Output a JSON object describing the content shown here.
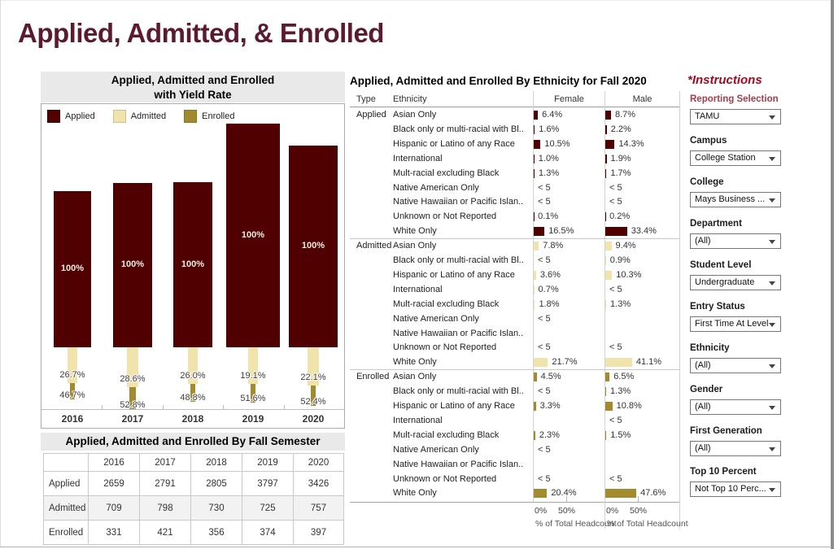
{
  "page": {
    "title": "Applied, Admitted, & Enrolled"
  },
  "colors": {
    "applied": "#500000",
    "admitted": "#F0E3AB",
    "enrolled": "#A28A2F",
    "title_maroon": "#5C1A31",
    "instructions_red": "#A6081F",
    "selection_red": "#A33C4B"
  },
  "yield_chart": {
    "title_line1": "Applied, Admitted and Enrolled",
    "title_line2": "with Yield Rate",
    "legend": [
      "Applied",
      "Admitted",
      "Enrolled"
    ],
    "years": [
      "2016",
      "2017",
      "2018",
      "2019",
      "2020"
    ],
    "applied": [
      2659,
      2791,
      2805,
      3797,
      3426
    ],
    "admitted": [
      709,
      798,
      730,
      725,
      757
    ],
    "enrolled": [
      331,
      421,
      356,
      374,
      397
    ],
    "applied_pct": [
      "100%",
      "100%",
      "100%",
      "100%",
      "100%"
    ],
    "admitted_pct": [
      "26.7%",
      "28.6%",
      "26.0%",
      "19.1%",
      "22.1%"
    ],
    "enrolled_pct": [
      "46.7%",
      "52.8%",
      "48.8%",
      "51.6%",
      "52.4%"
    ]
  },
  "semester_table": {
    "title": "Applied, Admitted and Enrolled By Fall Semester",
    "columns": [
      "",
      "2016",
      "2017",
      "2018",
      "2019",
      "2020"
    ],
    "rows": [
      {
        "label": "Applied",
        "values": [
          "2659",
          "2791",
          "2805",
          "3797",
          "3426"
        ]
      },
      {
        "label": "Admitted",
        "values": [
          "709",
          "798",
          "730",
          "725",
          "757"
        ]
      },
      {
        "label": "Enrolled",
        "values": [
          "331",
          "421",
          "356",
          "374",
          "397"
        ]
      }
    ]
  },
  "ethnicity_table": {
    "title": "Applied, Admitted and Enrolled By Ethnicity for Fall 2020",
    "columns": [
      "Type",
      "Ethnicity",
      "Female",
      "Male"
    ],
    "axis": {
      "ticks": [
        "0%",
        "50%"
      ],
      "caption": "% of Total Headcount"
    },
    "sections": [
      {
        "type": "Applied",
        "rows": [
          {
            "ethnicity": "Asian Only",
            "female": "6.4%",
            "male": "8.7%",
            "female_pct": 6.4,
            "male_pct": 8.7
          },
          {
            "ethnicity": "Black only or multi-racial with Bl..",
            "female": "1.6%",
            "male": "2.2%",
            "female_pct": 1.6,
            "male_pct": 2.2
          },
          {
            "ethnicity": "Hispanic or Latino of any Race",
            "female": "10.5%",
            "male": "14.3%",
            "female_pct": 10.5,
            "male_pct": 14.3
          },
          {
            "ethnicity": "International",
            "female": "1.0%",
            "male": "1.9%",
            "female_pct": 1.0,
            "male_pct": 1.9
          },
          {
            "ethnicity": "Mult-racial excluding Black",
            "female": "1.3%",
            "male": "1.7%",
            "female_pct": 1.3,
            "male_pct": 1.7
          },
          {
            "ethnicity": "Native American Only",
            "female": "< 5",
            "male": "< 5",
            "female_pct": 0,
            "male_pct": 0
          },
          {
            "ethnicity": "Native Hawaiian or Pacific Islan..",
            "female": "< 5",
            "male": "< 5",
            "female_pct": 0,
            "male_pct": 0
          },
          {
            "ethnicity": "Unknown or Not Reported",
            "female": "0.1%",
            "male": "0.2%",
            "female_pct": 0.1,
            "male_pct": 0.2
          },
          {
            "ethnicity": "White Only",
            "female": "16.5%",
            "male": "33.4%",
            "female_pct": 16.5,
            "male_pct": 33.4
          }
        ]
      },
      {
        "type": "Admitted",
        "rows": [
          {
            "ethnicity": "Asian Only",
            "female": "7.8%",
            "male": "9.4%",
            "female_pct": 7.8,
            "male_pct": 9.4
          },
          {
            "ethnicity": "Black only or multi-racial with Bl..",
            "female": "< 5",
            "male": "0.9%",
            "female_pct": 0,
            "male_pct": 0.9
          },
          {
            "ethnicity": "Hispanic or Latino of any Race",
            "female": "3.6%",
            "male": "10.3%",
            "female_pct": 3.6,
            "male_pct": 10.3
          },
          {
            "ethnicity": "International",
            "female": "0.7%",
            "male": "< 5",
            "female_pct": 0.7,
            "male_pct": 0
          },
          {
            "ethnicity": "Mult-racial excluding Black",
            "female": "1.8%",
            "male": "1.3%",
            "female_pct": 1.8,
            "male_pct": 1.3
          },
          {
            "ethnicity": "Native American Only",
            "female": "< 5",
            "male": "",
            "female_pct": 0,
            "male_pct": 0
          },
          {
            "ethnicity": "Native Hawaiian or Pacific Islan..",
            "female": "",
            "male": "",
            "female_pct": 0,
            "male_pct": 0
          },
          {
            "ethnicity": "Unknown or Not Reported",
            "female": "< 5",
            "male": "< 5",
            "female_pct": 0,
            "male_pct": 0
          },
          {
            "ethnicity": "White Only",
            "female": "21.7%",
            "male": "41.1%",
            "female_pct": 21.7,
            "male_pct": 41.1
          }
        ]
      },
      {
        "type": "Enrolled",
        "rows": [
          {
            "ethnicity": "Asian Only",
            "female": "4.5%",
            "male": "6.5%",
            "female_pct": 4.5,
            "male_pct": 6.5
          },
          {
            "ethnicity": "Black only or multi-racial with Bl..",
            "female": "< 5",
            "male": "1.3%",
            "female_pct": 0,
            "male_pct": 1.3
          },
          {
            "ethnicity": "Hispanic or Latino of any Race",
            "female": "3.3%",
            "male": "10.8%",
            "female_pct": 3.3,
            "male_pct": 10.8
          },
          {
            "ethnicity": "International",
            "female": "",
            "male": "< 5",
            "female_pct": 0,
            "male_pct": 0
          },
          {
            "ethnicity": "Mult-racial excluding Black",
            "female": "2.3%",
            "male": "1.5%",
            "female_pct": 2.3,
            "male_pct": 1.5
          },
          {
            "ethnicity": "Native American Only",
            "female": "< 5",
            "male": "",
            "female_pct": 0,
            "male_pct": 0
          },
          {
            "ethnicity": "Native Hawaiian or Pacific Islan..",
            "female": "",
            "male": "",
            "female_pct": 0,
            "male_pct": 0
          },
          {
            "ethnicity": "Unknown or Not Reported",
            "female": "< 5",
            "male": "< 5",
            "female_pct": 0,
            "male_pct": 0
          },
          {
            "ethnicity": "White Only",
            "female": "20.4%",
            "male": "47.6%",
            "female_pct": 20.4,
            "male_pct": 47.6
          }
        ]
      }
    ]
  },
  "sidebar": {
    "instructions": "*Instructions",
    "reporting": {
      "label": "Reporting Selection",
      "value": "TAMU"
    },
    "filters": [
      {
        "label": "Campus",
        "value": "College Station"
      },
      {
        "label": "College",
        "value": "Mays Business ..."
      },
      {
        "label": "Department",
        "value": "(All)"
      },
      {
        "label": "Student Level",
        "value": "Undergraduate"
      },
      {
        "label": "Entry Status",
        "value": "First Time At Level"
      },
      {
        "label": "Ethnicity",
        "value": "(All)"
      },
      {
        "label": "Gender",
        "value": "(All)"
      },
      {
        "label": "First Generation",
        "value": "(All)"
      },
      {
        "label": "Top 10 Percent",
        "value": "Not Top 10 Perc..."
      }
    ]
  },
  "chart_data": [
    {
      "type": "bar",
      "title": "Applied, Admitted and Enrolled with Yield Rate",
      "categories": [
        "2016",
        "2017",
        "2018",
        "2019",
        "2020"
      ],
      "series": [
        {
          "name": "Applied",
          "values": [
            2659,
            2791,
            2805,
            3797,
            3426
          ]
        },
        {
          "name": "Admitted",
          "values": [
            709,
            798,
            730,
            725,
            757
          ]
        },
        {
          "name": "Enrolled",
          "values": [
            331,
            421,
            356,
            374,
            397
          ]
        }
      ],
      "annotations": {
        "applied_pct": [
          "100%",
          "100%",
          "100%",
          "100%",
          "100%"
        ],
        "admit_rate": [
          "26.7%",
          "28.6%",
          "26.0%",
          "19.1%",
          "22.1%"
        ],
        "yield_rate": [
          "46.7%",
          "52.8%",
          "48.8%",
          "51.6%",
          "52.4%"
        ]
      },
      "legend_position": "top-left",
      "grid": false
    },
    {
      "type": "table",
      "title": "Applied, Admitted and Enrolled By Fall Semester",
      "categories": [
        "2016",
        "2017",
        "2018",
        "2019",
        "2020"
      ],
      "series": [
        {
          "name": "Applied",
          "values": [
            2659,
            2791,
            2805,
            3797,
            3426
          ]
        },
        {
          "name": "Admitted",
          "values": [
            709,
            798,
            730,
            725,
            757
          ]
        },
        {
          "name": "Enrolled",
          "values": [
            331,
            421,
            356,
            374,
            397
          ]
        }
      ]
    },
    {
      "type": "bar",
      "title": "Applied, Admitted and Enrolled By Ethnicity for Fall 2020",
      "xlabel": "% of Total Headcount",
      "xlim": [
        0,
        100
      ],
      "x_ticks": [
        "0%",
        "50%"
      ],
      "categories": [
        "Asian Only",
        "Black only or multi-racial with Bl..",
        "Hispanic or Latino of any Race",
        "International",
        "Mult-racial excluding Black",
        "Native American Only",
        "Native Hawaiian or Pacific Islan..",
        "Unknown or Not Reported",
        "White Only"
      ],
      "series": [
        {
          "name": "Applied Female",
          "values": [
            6.4,
            1.6,
            10.5,
            1.0,
            1.3,
            null,
            null,
            0.1,
            16.5
          ]
        },
        {
          "name": "Applied Male",
          "values": [
            8.7,
            2.2,
            14.3,
            1.9,
            1.7,
            null,
            null,
            0.2,
            33.4
          ]
        },
        {
          "name": "Admitted Female",
          "values": [
            7.8,
            null,
            3.6,
            0.7,
            1.8,
            null,
            null,
            null,
            21.7
          ]
        },
        {
          "name": "Admitted Male",
          "values": [
            9.4,
            0.9,
            10.3,
            null,
            1.3,
            null,
            null,
            null,
            41.1
          ]
        },
        {
          "name": "Enrolled Female",
          "values": [
            4.5,
            null,
            3.3,
            null,
            2.3,
            null,
            null,
            null,
            20.4
          ]
        },
        {
          "name": "Enrolled Male",
          "values": [
            6.5,
            1.3,
            10.8,
            null,
            1.5,
            null,
            null,
            null,
            47.6
          ]
        }
      ]
    }
  ]
}
